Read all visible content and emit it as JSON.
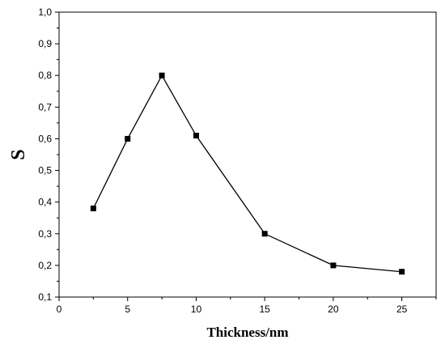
{
  "chart_data": {
    "type": "line",
    "title": "",
    "xlabel": "Thickness/nm",
    "ylabel": "S",
    "xlim": [
      0,
      27.5
    ],
    "ylim": [
      0.1,
      1.0
    ],
    "x_ticks": [
      0,
      5,
      10,
      15,
      20,
      25
    ],
    "x_tick_labels": [
      "0",
      "5",
      "10",
      "15",
      "20",
      "25"
    ],
    "y_ticks": [
      0.1,
      0.2,
      0.3,
      0.4,
      0.5,
      0.6,
      0.7,
      0.8,
      0.9,
      1.0
    ],
    "y_tick_labels": [
      "0,1",
      "0,2",
      "0,3",
      "0,4",
      "0,5",
      "0,6",
      "0,7",
      "0,8",
      "0,9",
      "1,0"
    ],
    "grid": false,
    "legend": "none",
    "marker": "square",
    "color": "#000000",
    "series": [
      {
        "x": [
          2.5,
          5,
          7.5,
          10,
          15,
          20,
          25
        ],
        "y": [
          0.38,
          0.6,
          0.8,
          0.61,
          0.3,
          0.2,
          0.18
        ]
      }
    ]
  }
}
